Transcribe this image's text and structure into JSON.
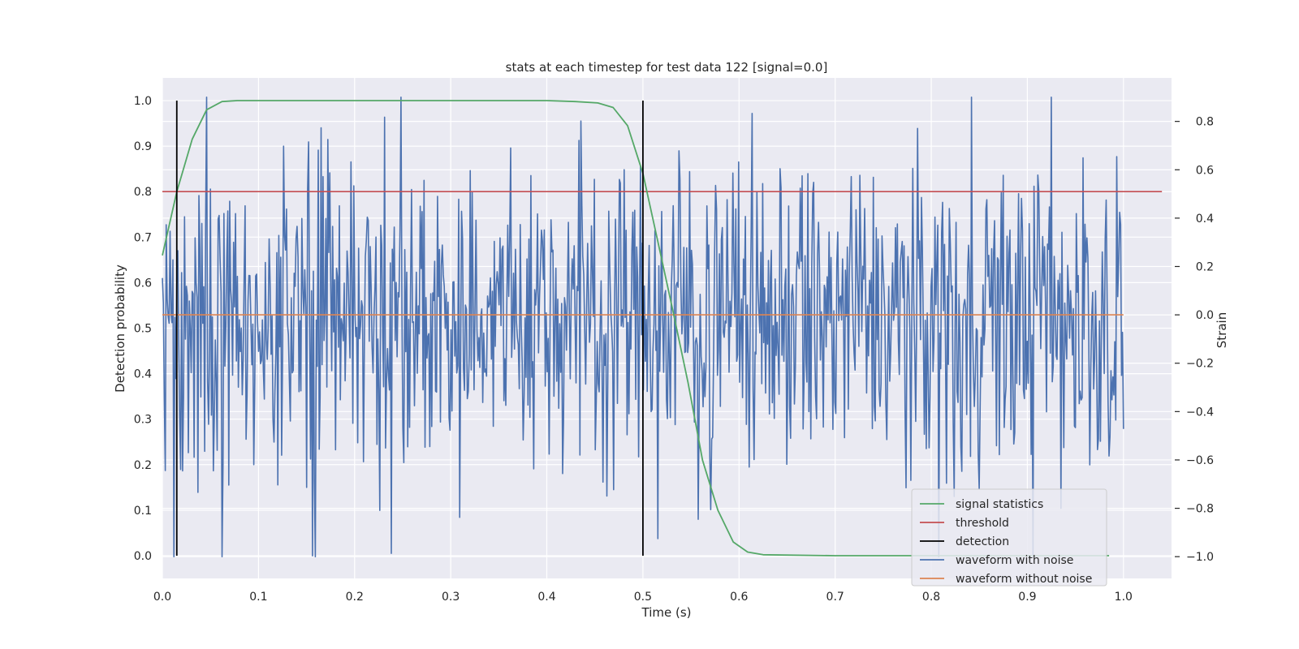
{
  "chart_data": {
    "type": "line",
    "title": "stats at each timestep for test data 122 [signal=0.0]",
    "xlabel": "Time (s)",
    "ylabel": "Detection probability",
    "ylabel_right": "Strain",
    "xlim": [
      0.0,
      1.05
    ],
    "ylim": [
      -0.05,
      1.05
    ],
    "ylim_right": [
      -1.09,
      0.98
    ],
    "x_ticks": [
      0.0,
      0.1,
      0.2,
      0.3,
      0.4,
      0.5,
      0.6,
      0.7,
      0.8,
      0.9,
      1.0
    ],
    "x_tick_labels": [
      "0.0",
      "0.1",
      "0.2",
      "0.3",
      "0.4",
      "0.5",
      "0.6",
      "0.7",
      "0.8",
      "0.9",
      "1.0"
    ],
    "y_ticks": [
      0.0,
      0.1,
      0.2,
      0.3,
      0.4,
      0.5,
      0.6,
      0.7,
      0.8,
      0.9,
      1.0
    ],
    "y_tick_labels": [
      "0.0",
      "0.1",
      "0.2",
      "0.3",
      "0.4",
      "0.5",
      "0.6",
      "0.7",
      "0.8",
      "0.9",
      "1.0"
    ],
    "y_right_ticks": [
      -1.0,
      -0.8,
      -0.6,
      -0.4,
      -0.2,
      0.0,
      0.2,
      0.4,
      0.6,
      0.8
    ],
    "y_right_tick_labels": [
      "−1.0",
      "−0.8",
      "−0.6",
      "−0.4",
      "−0.2",
      "0.0",
      "0.2",
      "0.4",
      "0.6",
      "0.8"
    ],
    "grid": true,
    "legend_position": "bottom-right",
    "series": [
      {
        "name": "signal statistics",
        "color": "#55a868",
        "axis": "left",
        "x": [
          0.0,
          0.015,
          0.031,
          0.046,
          0.062,
          0.078,
          0.1,
          0.2,
          0.3,
          0.4,
          0.43,
          0.453,
          0.469,
          0.484,
          0.5,
          0.515,
          0.531,
          0.547,
          0.562,
          0.578,
          0.594,
          0.609,
          0.625,
          0.7,
          0.8,
          0.9,
          0.985
        ],
        "y": [
          0.66,
          0.8,
          0.915,
          0.98,
          0.998,
          1.0,
          1.0,
          1.0,
          1.0,
          1.0,
          0.998,
          0.995,
          0.985,
          0.945,
          0.84,
          0.695,
          0.54,
          0.38,
          0.21,
          0.1,
          0.03,
          0.008,
          0.002,
          0.0,
          0.0,
          0.0,
          0.0
        ]
      },
      {
        "name": "threshold",
        "color": "#c44e52",
        "axis": "left",
        "x": [
          0.0,
          1.04
        ],
        "y": [
          0.8,
          0.8
        ]
      },
      {
        "name": "detection",
        "color": "#000000",
        "axis": "left",
        "vlines": [
          {
            "x": 0.015,
            "ymin": 0.0,
            "ymax": 1.0
          },
          {
            "x": 0.5,
            "ymin": 0.0,
            "ymax": 1.0
          }
        ]
      },
      {
        "name": "waveform with noise",
        "color": "#4c72b0",
        "axis": "right",
        "x_start": 0.0,
        "x_end": 1.0,
        "num_points": 1000,
        "min": -1.0,
        "max": 0.9
      },
      {
        "name": "waveform without noise",
        "color": "#dd8452",
        "axis": "right",
        "x": [
          0.0,
          1.0
        ],
        "y": [
          0.0,
          0.0
        ]
      }
    ]
  }
}
